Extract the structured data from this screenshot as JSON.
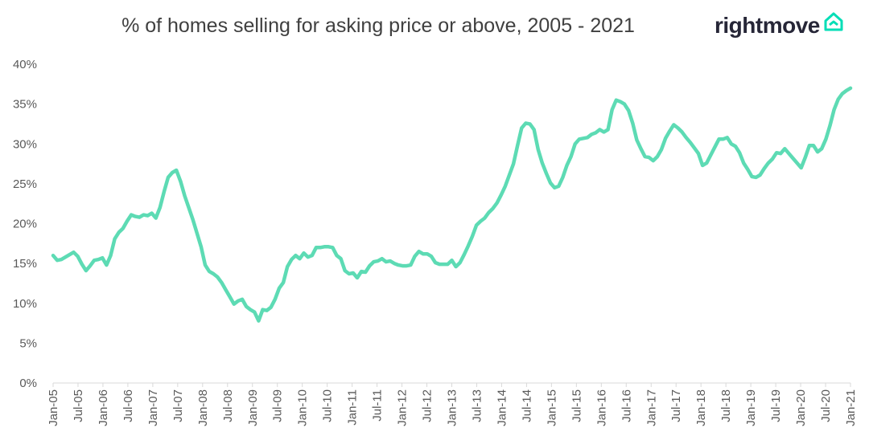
{
  "header": {
    "title": "% of homes selling for asking price or above, 2005 - 2021",
    "logo_text": "rightmove",
    "logo_icon": "house-icon",
    "brand_color": "#262637",
    "accent_color": "#00deb6"
  },
  "chart_data": {
    "type": "line",
    "title": "% of homes selling for asking price or above, 2005 - 2021",
    "xlabel": "",
    "ylabel": "",
    "ylim": [
      0,
      40
    ],
    "y_ticks": [
      "0%",
      "5%",
      "10%",
      "15%",
      "20%",
      "25%",
      "30%",
      "35%",
      "40%"
    ],
    "grid": false,
    "line_color": "#5ddbb4",
    "x_ticks": [
      "Jan-05",
      "Jul-05",
      "Jan-06",
      "Jul-06",
      "Jan-07",
      "Jul-07",
      "Jan-08",
      "Jul-08",
      "Jan-09",
      "Jul-09",
      "Jan-10",
      "Jul-10",
      "Jan-11",
      "Jul-11",
      "Jan-12",
      "Jul-12",
      "Jan-13",
      "Jul-13",
      "Jan-14",
      "Jul-14",
      "Jan-15",
      "Jul-15",
      "Jan-16",
      "Jul-16",
      "Jan-17",
      "Jul-17",
      "Jan-18",
      "Jul-18",
      "Jan-19",
      "Jul-19",
      "Jan-20",
      "Jul-20",
      "Jan-21"
    ],
    "series": [
      {
        "values": [
          16.0,
          15.4,
          15.5,
          15.8,
          16.1,
          16.4,
          15.9,
          14.9,
          14.1,
          14.7,
          15.4,
          15.5,
          15.7,
          14.8,
          16.0,
          18.1,
          18.9,
          19.4,
          20.3,
          21.1,
          20.9,
          20.8,
          21.1,
          21.0,
          21.3,
          20.7,
          22.0,
          24.0,
          25.8,
          26.4,
          26.7,
          25.3,
          23.5,
          22.0,
          20.5,
          18.8,
          17.1,
          14.8,
          14.0,
          13.7,
          13.3,
          12.6,
          11.7,
          10.8,
          9.9,
          10.3,
          10.5,
          9.6,
          9.2,
          8.9,
          7.8,
          9.2,
          9.1,
          9.5,
          10.5,
          11.9,
          12.6,
          14.6,
          15.5,
          16.0,
          15.6,
          16.3,
          15.8,
          16.0,
          17.0,
          17.0,
          17.1,
          17.1,
          17.0,
          16.0,
          15.6,
          14.1,
          13.7,
          13.8,
          13.2,
          14.0,
          13.9,
          14.7,
          15.2,
          15.3,
          15.6,
          15.2,
          15.3,
          15.0,
          14.8,
          14.7,
          14.7,
          14.8,
          15.9,
          16.5,
          16.2,
          16.2,
          15.9,
          15.1,
          14.9,
          14.9,
          14.9,
          15.4,
          14.6,
          15.1,
          16.1,
          17.2,
          18.4,
          19.8,
          20.3,
          20.7,
          21.4,
          21.9,
          22.6,
          23.6,
          24.7,
          26.1,
          27.5,
          29.8,
          32.0,
          32.6,
          32.5,
          31.8,
          29.3,
          27.6,
          26.3,
          25.1,
          24.5,
          24.7,
          25.8,
          27.3,
          28.4,
          30.0,
          30.6,
          30.7,
          30.8,
          31.2,
          31.4,
          31.8,
          31.5,
          31.8,
          34.3,
          35.5,
          35.3,
          35.0,
          34.2,
          32.6,
          30.5,
          29.4,
          28.4,
          28.3,
          27.9,
          28.4,
          29.3,
          30.7,
          31.6,
          32.4,
          32.0,
          31.5,
          30.8,
          30.2,
          29.5,
          28.8,
          27.3,
          27.6,
          28.6,
          29.6,
          30.6,
          30.6,
          30.8,
          30.0,
          29.7,
          28.9,
          27.6,
          26.8,
          25.9,
          25.8,
          26.1,
          26.9,
          27.6,
          28.1,
          28.9,
          28.8,
          29.4,
          28.8,
          28.2,
          27.6,
          27.0,
          28.3,
          29.8,
          29.8,
          29.0,
          29.4,
          30.6,
          32.3,
          34.3,
          35.6,
          36.3,
          36.7,
          37.0
        ]
      }
    ]
  }
}
